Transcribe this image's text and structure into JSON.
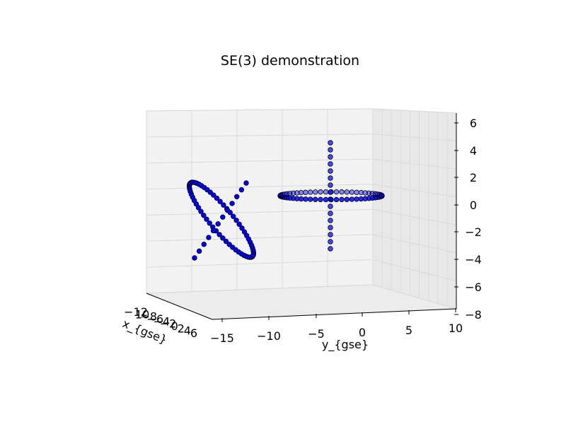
{
  "chart_data": {
    "type": "scatter",
    "projection": "3d",
    "title": "SE(3) demonstration",
    "xlabel": "x_{gse}",
    "ylabel": "y_{gse}",
    "zlabel": "",
    "y_ticks": [
      "−15",
      "−10",
      "−5",
      "0",
      "5",
      "10"
    ],
    "z_ticks": [
      "6",
      "4",
      "2",
      "0",
      "−2",
      "−4",
      "−6",
      "−8"
    ],
    "x_ticks": [
      "−12",
      "10",
      "−8",
      "−6",
      "−4",
      "−2",
      "0",
      "2",
      "4",
      "6"
    ],
    "ylim": [
      -15,
      10
    ],
    "zlim": [
      -8,
      6
    ],
    "grid": true,
    "marker_color": "#0000ff",
    "marker_edge": "#000000",
    "series": [
      {
        "shape": "ring",
        "values_described": "tilted circle of radius ~5 centered near y=-13, z=-1",
        "center_y": -13,
        "center_z": -1.3,
        "tilt_deg": 50,
        "n_points": 60
      },
      {
        "shape": "line",
        "values_described": "straight line of points through ring center",
        "from_y": -17.5,
        "from_z": -4.2,
        "to_y": -11,
        "to_z": 1.5,
        "n_points": 12
      },
      {
        "shape": "ring",
        "values_described": "flat horizontal circle of radius ~5 centered near y=-1, z=0",
        "center_y": -1,
        "center_z": 0.3,
        "tilt_deg": 0,
        "n_points": 60
      },
      {
        "shape": "line",
        "values_described": "vertical line of points through ring center",
        "from_y": -1,
        "from_z": -3.2,
        "to_y": -1,
        "to_z": 4.5,
        "n_points": 16
      }
    ]
  }
}
